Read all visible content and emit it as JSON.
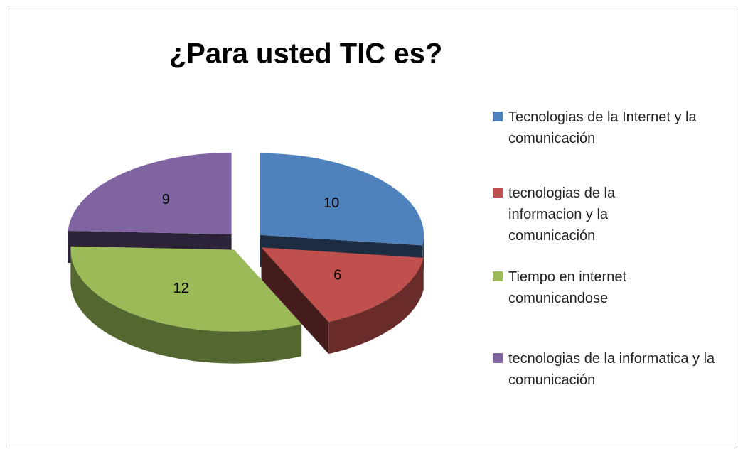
{
  "chart_data": {
    "type": "pie",
    "title": "¿Para usted TIC es?",
    "categories": [
      "Tecnologias de la Internet y la comunicación",
      "tecnologias de la informacion y la comunicación",
      "Tiempo en internet comunicandose",
      "tecnologias de la informatica y la comunicación"
    ],
    "values": [
      10,
      6,
      12,
      9
    ],
    "colors": [
      "#4f81bd",
      "#c0504d",
      "#9bbb59",
      "#8064a2"
    ],
    "legend": "right"
  }
}
